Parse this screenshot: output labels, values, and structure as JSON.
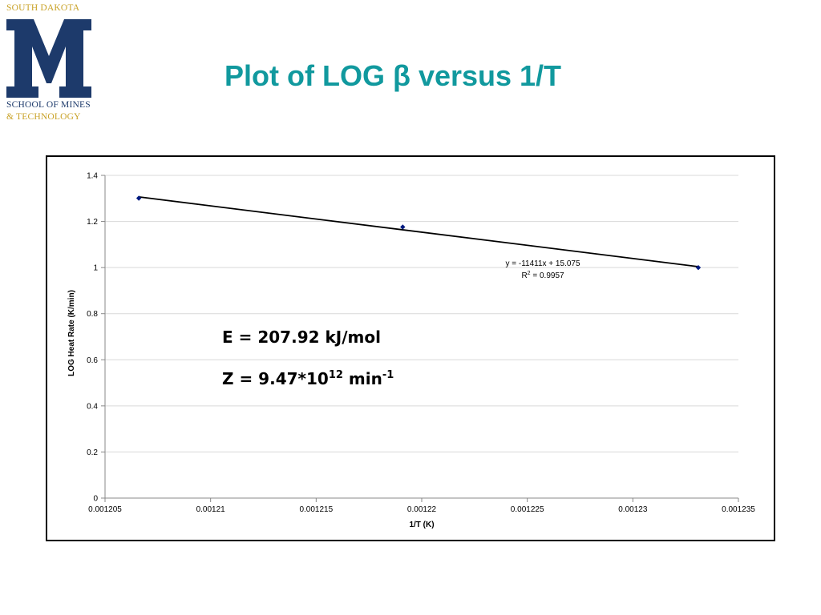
{
  "logo": {
    "top": "SOUTH DAKOTA",
    "letter": "M",
    "school": "SCHOOL OF MINES",
    "tech": "& TECHNOLOGY",
    "colors": {
      "navy": "#1d3a6b",
      "gold": "#c9a227"
    }
  },
  "slide": {
    "title": "Plot of LOG β versus 1/T",
    "title_color": "#11999e"
  },
  "annotations": {
    "energy": "E = 207.92 kJ/mol",
    "z_prefix": "Z = 9.47*10",
    "z_exp": "12",
    "z_unit": " min",
    "z_unit_exp": "-1",
    "trend_equation": "y = -11411x + 15.075",
    "r2_prefix": "R",
    "r2_exp": "2",
    "r2_value": " = 0.9957"
  },
  "chart_data": {
    "type": "scatter",
    "title": "",
    "xlabel": "1/T (K)",
    "ylabel": "LOG Heat Rate (K/min)",
    "xlim": [
      0.001205,
      0.001235
    ],
    "ylim": [
      0,
      1.4
    ],
    "x_ticks": [
      "0.001205",
      "0.00121",
      "0.001215",
      "0.00122",
      "0.001225",
      "0.00123",
      "0.001235"
    ],
    "y_ticks": [
      "0",
      "0.2",
      "0.4",
      "0.6",
      "0.8",
      "1",
      "1.2",
      "1.4"
    ],
    "grid": "horizontal",
    "legend": "none",
    "series": [
      {
        "x": [
          0.0012066,
          0.0012191,
          0.0012331
        ],
        "y": [
          1.301,
          1.176,
          1.0
        ],
        "color": "#001a80"
      }
    ],
    "trendline": {
      "slope": -11411,
      "intercept": 15.075,
      "x_range": [
        0.0012066,
        0.0012331
      ],
      "color": "#000000"
    }
  }
}
